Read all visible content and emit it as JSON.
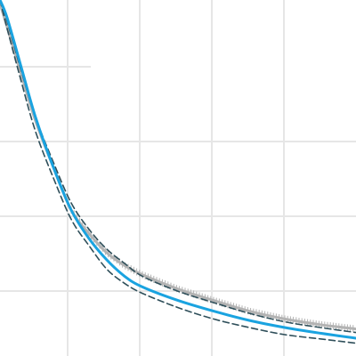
{
  "chart_data": {
    "type": "line",
    "title": "",
    "xlabel": "",
    "ylabel": "",
    "grid": true,
    "xlim": [
      0,
      5
    ],
    "ylim": [
      0,
      5
    ],
    "colors": {
      "fitted": "#1aa3e0",
      "bounds": "#2f4f5a",
      "observed": "#b3b3b3",
      "grid": "#e6e6e6"
    },
    "series": [
      {
        "role": "observed",
        "style": "marked",
        "x": [
          0.0,
          0.1,
          0.3,
          0.5,
          0.75,
          1.0,
          1.25,
          1.5,
          1.75,
          2.0,
          2.5,
          3.0,
          3.5,
          4.0,
          4.5,
          5.0
        ],
        "y": [
          4.95,
          4.62,
          3.95,
          3.3,
          2.65,
          2.05,
          1.72,
          1.45,
          1.27,
          1.14,
          0.94,
          0.78,
          0.63,
          0.52,
          0.44,
          0.38
        ]
      },
      {
        "role": "fitted",
        "style": "solid",
        "x": [
          0.0,
          0.1,
          0.3,
          0.5,
          0.75,
          1.0,
          1.25,
          1.5,
          1.75,
          2.0,
          2.5,
          3.0,
          3.5,
          4.0,
          4.5,
          5.0
        ],
        "y": [
          5.0,
          4.75,
          4.05,
          3.35,
          2.65,
          2.05,
          1.65,
          1.35,
          1.12,
          0.97,
          0.78,
          0.63,
          0.5,
          0.4,
          0.32,
          0.25
        ]
      },
      {
        "role": "upper-bound",
        "style": "dashed",
        "x": [
          0.0,
          0.1,
          0.3,
          0.5,
          0.75,
          1.0,
          1.25,
          1.5,
          1.75,
          2.0,
          2.5,
          3.0,
          3.5,
          4.0,
          4.5,
          5.0
        ],
        "y": [
          5.0,
          4.7,
          4.0,
          3.35,
          2.72,
          2.15,
          1.78,
          1.5,
          1.3,
          1.12,
          0.91,
          0.75,
          0.6,
          0.48,
          0.4,
          0.33
        ]
      },
      {
        "role": "lower-bound",
        "style": "dashed",
        "x": [
          0.0,
          0.1,
          0.3,
          0.5,
          0.75,
          1.0,
          1.25,
          1.5,
          1.75,
          2.0,
          2.5,
          3.0,
          3.5,
          4.0,
          4.5,
          5.0
        ],
        "y": [
          5.0,
          4.6,
          3.85,
          3.15,
          2.5,
          1.92,
          1.55,
          1.22,
          1.02,
          0.88,
          0.68,
          0.52,
          0.4,
          0.3,
          0.24,
          0.18
        ]
      }
    ]
  }
}
